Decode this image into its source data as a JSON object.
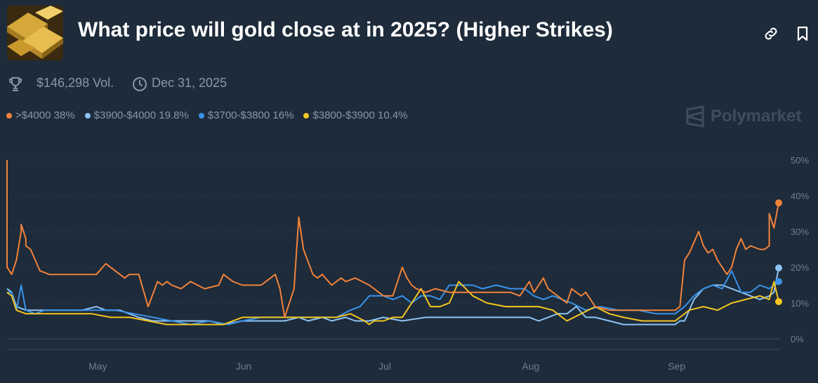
{
  "header": {
    "title": "What price will gold close at in 2025? (Higher Strikes)",
    "thumbnail_icon": "gold-bars-image",
    "link_icon": "link-icon",
    "bookmark_icon": "bookmark-icon"
  },
  "meta": {
    "volume": "$146,298 Vol.",
    "end_date": "Dec 31, 2025"
  },
  "legend": [
    {
      "label": ">$4000 38%",
      "color": "#f2823a"
    },
    {
      "label": "$3900-$4000 19.8%",
      "color": "#8ec4f5"
    },
    {
      "label": "$3700-$3800 16%",
      "color": "#3a92ea"
    },
    {
      "label": "$3800-$3900 10.4%",
      "color": "#f3c520"
    }
  ],
  "brand": "Polymarket",
  "chart_data": {
    "type": "line",
    "x_start": "2025-04-12",
    "x_end": "2025-09-23",
    "ylim": [
      0,
      50
    ],
    "y_ticks": [
      "50%",
      "40%",
      "30%",
      "20%",
      "10%",
      "0%"
    ],
    "x_ticks": [
      {
        "label": "May",
        "date": "2025-05-01"
      },
      {
        "label": "Jun",
        "date": "2025-06-01"
      },
      {
        "label": "Jul",
        "date": "2025-07-01"
      },
      {
        "label": "Aug",
        "date": "2025-08-01"
      },
      {
        "label": "Sep",
        "date": "2025-09-01"
      }
    ],
    "grid": true,
    "series": [
      {
        "name": ">$4000",
        "color": "#f2823a",
        "last": 38,
        "x": [
          "2025-04-12",
          "2025-04-12",
          "2025-04-13",
          "2025-04-14",
          "2025-04-15",
          "2025-04-15",
          "2025-04-16",
          "2025-04-16",
          "2025-04-17",
          "2025-04-18",
          "2025-04-19",
          "2025-04-21",
          "2025-04-23",
          "2025-04-25",
          "2025-04-28",
          "2025-05-01",
          "2025-05-03",
          "2025-05-05",
          "2025-05-06",
          "2025-05-07",
          "2025-05-08",
          "2025-05-10",
          "2025-05-12",
          "2025-05-14",
          "2025-05-15",
          "2025-05-16",
          "2025-05-17",
          "2025-05-19",
          "2025-05-21",
          "2025-05-24",
          "2025-05-27",
          "2025-05-28",
          "2025-05-30",
          "2025-06-01",
          "2025-06-03",
          "2025-06-05",
          "2025-06-08",
          "2025-06-09",
          "2025-06-10",
          "2025-06-12",
          "2025-06-13",
          "2025-06-14",
          "2025-06-16",
          "2025-06-17",
          "2025-06-18",
          "2025-06-20",
          "2025-06-22",
          "2025-06-23",
          "2025-06-25",
          "2025-06-28",
          "2025-07-01",
          "2025-07-03",
          "2025-07-05",
          "2025-07-06",
          "2025-07-07",
          "2025-07-08",
          "2025-07-10",
          "2025-07-12",
          "2025-07-15",
          "2025-07-18",
          "2025-07-20",
          "2025-07-22",
          "2025-07-25",
          "2025-07-28",
          "2025-07-30",
          "2025-08-01",
          "2025-08-02",
          "2025-08-04",
          "2025-08-05",
          "2025-08-07",
          "2025-08-09",
          "2025-08-10",
          "2025-08-12",
          "2025-08-13",
          "2025-08-15",
          "2025-08-18",
          "2025-08-20",
          "2025-08-23",
          "2025-08-26",
          "2025-08-29",
          "2025-08-30",
          "2025-08-31",
          "2025-09-01",
          "2025-09-02",
          "2025-09-03",
          "2025-09-04",
          "2025-09-05",
          "2025-09-06",
          "2025-09-07",
          "2025-09-08",
          "2025-09-09",
          "2025-09-10",
          "2025-09-11",
          "2025-09-12",
          "2025-09-13",
          "2025-09-14",
          "2025-09-15",
          "2025-09-16",
          "2025-09-17",
          "2025-09-19",
          "2025-09-20",
          "2025-09-21",
          "2025-09-21",
          "2025-09-22",
          "2025-09-23"
        ],
        "y": [
          50,
          20,
          18,
          22,
          30,
          32,
          28,
          26,
          25,
          22,
          19,
          18,
          18,
          18,
          18,
          18,
          21,
          19,
          18,
          17,
          18,
          18,
          9,
          16,
          15,
          16,
          15,
          14,
          16,
          14,
          15,
          18,
          16,
          15,
          15,
          15,
          18,
          14,
          6,
          14,
          34,
          25,
          18,
          17,
          18,
          15,
          17,
          16,
          17,
          15,
          12,
          12,
          20,
          17,
          15,
          14,
          13,
          14,
          13,
          13,
          13,
          13,
          13,
          13,
          12,
          16,
          13,
          17,
          14,
          12,
          10,
          14,
          12,
          13,
          9,
          8,
          8,
          8,
          8,
          8,
          8,
          8,
          8,
          9,
          22,
          24,
          27,
          30,
          26,
          24,
          25,
          22,
          20,
          18,
          20,
          25,
          28,
          25,
          26,
          25,
          25,
          26,
          35,
          31,
          38
        ]
      },
      {
        "name": "$3900-$4000",
        "color": "#8ec4f5",
        "last": 19.8,
        "x": [
          "2025-04-12",
          "2025-04-13",
          "2025-04-14",
          "2025-04-16",
          "2025-04-17",
          "2025-04-18",
          "2025-04-20",
          "2025-04-22",
          "2025-04-25",
          "2025-04-28",
          "2025-05-01",
          "2025-05-03",
          "2025-05-06",
          "2025-05-08",
          "2025-05-10",
          "2025-05-13",
          "2025-05-16",
          "2025-05-20",
          "2025-05-25",
          "2025-05-28",
          "2025-06-01",
          "2025-06-05",
          "2025-06-10",
          "2025-06-13",
          "2025-06-15",
          "2025-06-18",
          "2025-06-20",
          "2025-06-23",
          "2025-06-25",
          "2025-06-28",
          "2025-07-01",
          "2025-07-05",
          "2025-07-10",
          "2025-07-15",
          "2025-07-20",
          "2025-07-25",
          "2025-07-28",
          "2025-08-01",
          "2025-08-03",
          "2025-08-05",
          "2025-08-07",
          "2025-08-09",
          "2025-08-11",
          "2025-08-13",
          "2025-08-15",
          "2025-08-18",
          "2025-08-21",
          "2025-08-24",
          "2025-08-27",
          "2025-08-30",
          "2025-09-01",
          "2025-09-02",
          "2025-09-03",
          "2025-09-05",
          "2025-09-07",
          "2025-09-09",
          "2025-09-11",
          "2025-09-13",
          "2025-09-15",
          "2025-09-17",
          "2025-09-19",
          "2025-09-21",
          "2025-09-22",
          "2025-09-23"
        ],
        "y": [
          14,
          13,
          9,
          8,
          8,
          8,
          8,
          8,
          8,
          8,
          9,
          8,
          8,
          7,
          6,
          5,
          5,
          5,
          5,
          4,
          5,
          5,
          5,
          6,
          5,
          6,
          5,
          6,
          5,
          5,
          6,
          5,
          6,
          6,
          6,
          6,
          6,
          6,
          5,
          6,
          7,
          7,
          9,
          6,
          6,
          5,
          4,
          4,
          4,
          4,
          4,
          5,
          5,
          11,
          14,
          15,
          15,
          14,
          13,
          12,
          11,
          12,
          13,
          19.8
        ]
      },
      {
        "name": "$3700-$3800",
        "color": "#3a92ea",
        "last": 16,
        "x": [
          "2025-04-12",
          "2025-04-13",
          "2025-04-14",
          "2025-04-15",
          "2025-04-16",
          "2025-04-18",
          "2025-04-20",
          "2025-04-23",
          "2025-04-26",
          "2025-04-29",
          "2025-05-02",
          "2025-05-05",
          "2025-05-09",
          "2025-05-13",
          "2025-05-17",
          "2025-05-21",
          "2025-05-25",
          "2025-05-29",
          "2025-06-01",
          "2025-06-05",
          "2025-06-10",
          "2025-06-14",
          "2025-06-18",
          "2025-06-21",
          "2025-06-24",
          "2025-06-26",
          "2025-06-28",
          "2025-07-01",
          "2025-07-03",
          "2025-07-05",
          "2025-07-07",
          "2025-07-09",
          "2025-07-11",
          "2025-07-13",
          "2025-07-15",
          "2025-07-18",
          "2025-07-20",
          "2025-07-22",
          "2025-07-25",
          "2025-07-28",
          "2025-07-31",
          "2025-08-02",
          "2025-08-04",
          "2025-08-06",
          "2025-08-08",
          "2025-08-10",
          "2025-08-13",
          "2025-08-16",
          "2025-08-20",
          "2025-08-24",
          "2025-08-28",
          "2025-09-01",
          "2025-09-03",
          "2025-09-05",
          "2025-09-07",
          "2025-09-09",
          "2025-09-11",
          "2025-09-13",
          "2025-09-15",
          "2025-09-17",
          "2025-09-19",
          "2025-09-21",
          "2025-09-23"
        ],
        "y": [
          13,
          13,
          8,
          15,
          8,
          7,
          8,
          8,
          8,
          8,
          8,
          8,
          7,
          6,
          5,
          4,
          5,
          4,
          5,
          6,
          6,
          6,
          6,
          6,
          8,
          9,
          12,
          12,
          11,
          12,
          10,
          12,
          12,
          11,
          15,
          15,
          15,
          14,
          15,
          14,
          14,
          12,
          11,
          12,
          11,
          10,
          8,
          9,
          8,
          8,
          7,
          7,
          9,
          12,
          14,
          15,
          14,
          19,
          13,
          13,
          15,
          14,
          16
        ]
      },
      {
        "name": "$3800-$3900",
        "color": "#f3c520",
        "last": 10.4,
        "x": [
          "2025-04-12",
          "2025-04-13",
          "2025-04-14",
          "2025-04-16",
          "2025-04-18",
          "2025-04-20",
          "2025-04-23",
          "2025-04-26",
          "2025-04-30",
          "2025-05-04",
          "2025-05-08",
          "2025-05-12",
          "2025-05-16",
          "2025-05-20",
          "2025-05-24",
          "2025-05-28",
          "2025-06-01",
          "2025-06-05",
          "2025-06-10",
          "2025-06-14",
          "2025-06-18",
          "2025-06-21",
          "2025-06-24",
          "2025-06-27",
          "2025-06-28",
          "2025-06-29",
          "2025-07-01",
          "2025-07-03",
          "2025-07-05",
          "2025-07-07",
          "2025-07-09",
          "2025-07-11",
          "2025-07-13",
          "2025-07-15",
          "2025-07-17",
          "2025-07-20",
          "2025-07-23",
          "2025-07-27",
          "2025-07-31",
          "2025-08-03",
          "2025-08-06",
          "2025-08-09",
          "2025-08-12",
          "2025-08-15",
          "2025-08-18",
          "2025-08-21",
          "2025-08-25",
          "2025-08-29",
          "2025-09-01",
          "2025-09-04",
          "2025-09-07",
          "2025-09-10",
          "2025-09-13",
          "2025-09-16",
          "2025-09-19",
          "2025-09-21",
          "2025-09-22",
          "2025-09-23"
        ],
        "y": [
          13,
          12,
          8,
          7,
          7,
          7,
          7,
          7,
          7,
          6,
          6,
          5,
          4,
          4,
          4,
          4,
          6,
          6,
          6,
          6,
          6,
          6,
          7,
          5,
          4,
          5,
          5,
          6,
          6,
          10,
          14,
          9,
          9,
          10,
          16,
          12,
          10,
          9,
          9,
          9,
          8,
          5,
          7,
          9,
          7,
          6,
          5,
          5,
          5,
          8,
          9,
          8,
          10,
          11,
          12,
          11,
          16,
          10.4
        ]
      }
    ]
  }
}
